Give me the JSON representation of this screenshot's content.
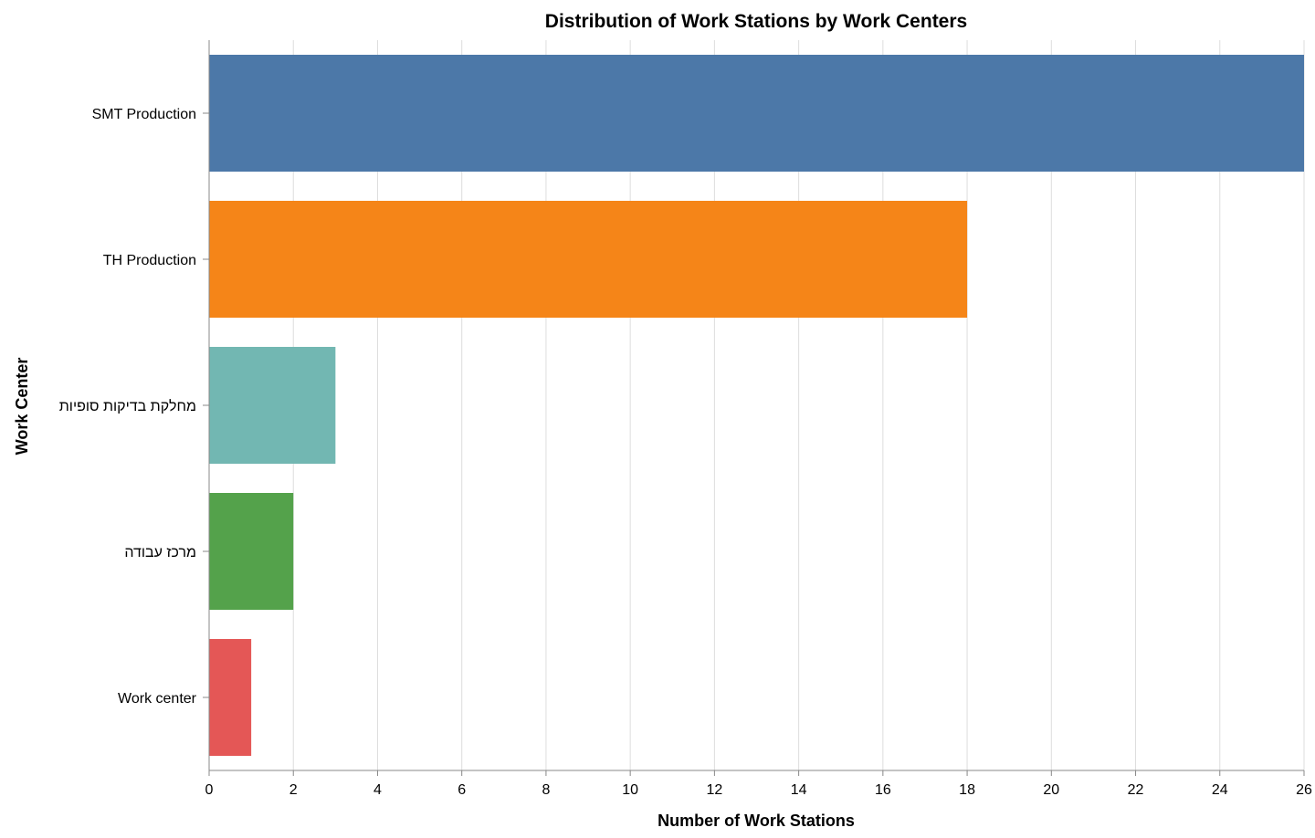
{
  "chart_data": {
    "type": "bar",
    "orientation": "horizontal",
    "title": "Distribution of Work Stations by Work Centers",
    "xlabel": "Number of Work Stations",
    "ylabel": "Work Center",
    "categories": [
      "SMT Production",
      "TH Production",
      "מחלקת בדיקות סופיות",
      "מרכז עבודה",
      "Work center"
    ],
    "values": [
      26,
      18,
      3,
      2,
      1
    ],
    "colors": [
      "#4c78a8",
      "#f58518",
      "#72b7b2",
      "#54a24b",
      "#e45756"
    ],
    "xlim": [
      0,
      26
    ],
    "xticks": [
      0,
      2,
      4,
      6,
      8,
      10,
      12,
      14,
      16,
      18,
      20,
      22,
      24,
      26
    ],
    "grid": true
  }
}
